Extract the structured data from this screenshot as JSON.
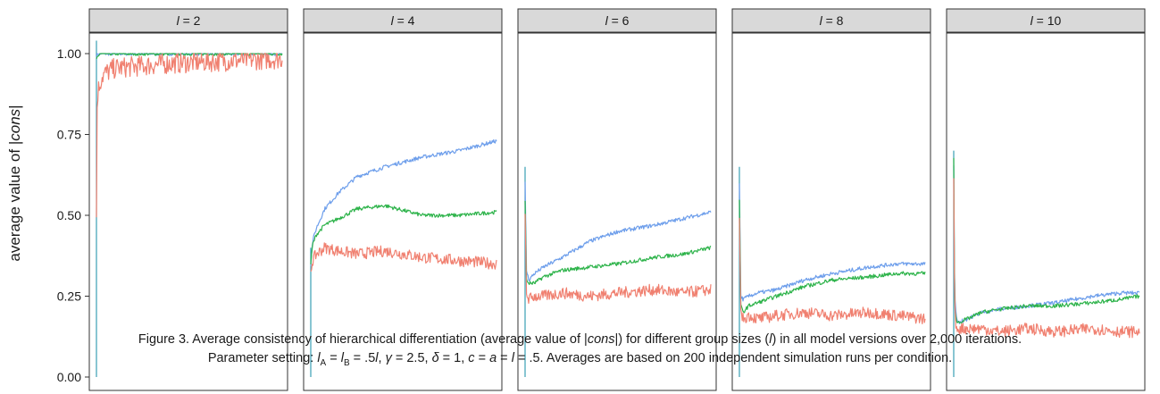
{
  "chart_data": {
    "type": "line",
    "ylabel_prefix": "average value of |",
    "ylabel_var": "cons",
    "ylabel_suffix": "|",
    "ylim": [
      0,
      1
    ],
    "yticks": [
      "0.00",
      "0.25",
      "0.50",
      "0.75",
      "1.00"
    ],
    "ytick_values": [
      0,
      0.25,
      0.5,
      0.75,
      1
    ],
    "x_range": [
      0,
      2000
    ],
    "grid": false,
    "legend": "none",
    "colors": {
      "blue": "#6d9eeb",
      "green": "#2db34a",
      "red": "#f08070",
      "teal": "#3a9fb5"
    },
    "panels": [
      {
        "strip_var": "l",
        "strip_eq": " = 2",
        "series": [
          {
            "color": "#6d9eeb",
            "x": [
              0,
              10,
              40,
              100,
              300,
              2000
            ],
            "y": [
              0.99,
              1.0,
              1.0,
              1.0,
              1.0,
              1.0
            ]
          },
          {
            "color": "#2db34a",
            "x": [
              0,
              10,
              40,
              100,
              300,
              2000
            ],
            "y": [
              0.98,
              0.99,
              1.0,
              1.0,
              1.0,
              1.0
            ]
          },
          {
            "color": "#f08070",
            "x": [
              0,
              5,
              15,
              30,
              60,
              100,
              200,
              400,
              800,
              1200,
              1600,
              2000
            ],
            "y": [
              0.5,
              0.82,
              0.88,
              0.9,
              0.93,
              0.94,
              0.955,
              0.96,
              0.97,
              0.975,
              0.98,
              0.985
            ]
          }
        ]
      },
      {
        "strip_var": "l",
        "strip_eq": " = 4",
        "series": [
          {
            "color": "#6d9eeb",
            "x": [
              0,
              20,
              60,
              150,
              300,
              500,
              800,
              1200,
              1600,
              2000
            ],
            "y": [
              0.35,
              0.42,
              0.46,
              0.52,
              0.57,
              0.62,
              0.65,
              0.68,
              0.7,
              0.73
            ]
          },
          {
            "color": "#2db34a",
            "x": [
              0,
              20,
              60,
              150,
              300,
              500,
              800,
              1200,
              1600,
              2000
            ],
            "y": [
              0.35,
              0.41,
              0.44,
              0.47,
              0.49,
              0.52,
              0.53,
              0.5,
              0.5,
              0.51
            ]
          },
          {
            "color": "#f08070",
            "x": [
              0,
              20,
              60,
              150,
              300,
              500,
              800,
              1200,
              1600,
              2000
            ],
            "y": [
              0.33,
              0.36,
              0.38,
              0.4,
              0.39,
              0.38,
              0.39,
              0.37,
              0.36,
              0.35
            ]
          }
        ]
      },
      {
        "strip_var": "l",
        "strip_eq": " = 6",
        "series": [
          {
            "color": "#6d9eeb",
            "x": [
              0,
              15,
              40,
              100,
              200,
              400,
              700,
              1000,
              1400,
              1700,
              2000
            ],
            "y": [
              0.6,
              0.33,
              0.3,
              0.32,
              0.34,
              0.37,
              0.42,
              0.45,
              0.47,
              0.49,
              0.51
            ]
          },
          {
            "color": "#2db34a",
            "x": [
              0,
              15,
              40,
              100,
              200,
              400,
              700,
              1000,
              1400,
              1700,
              2000
            ],
            "y": [
              0.55,
              0.3,
              0.29,
              0.29,
              0.31,
              0.33,
              0.34,
              0.35,
              0.37,
              0.38,
              0.4
            ]
          },
          {
            "color": "#f08070",
            "x": [
              0,
              15,
              40,
              100,
              200,
              400,
              700,
              1000,
              1400,
              1700,
              2000
            ],
            "y": [
              0.5,
              0.26,
              0.24,
              0.25,
              0.25,
              0.26,
              0.25,
              0.26,
              0.27,
              0.26,
              0.27
            ]
          }
        ]
      },
      {
        "strip_var": "l",
        "strip_eq": " = 8",
        "series": [
          {
            "color": "#6d9eeb",
            "x": [
              0,
              15,
              40,
              100,
              200,
              400,
              700,
              1000,
              1400,
              1700,
              2000
            ],
            "y": [
              0.6,
              0.25,
              0.24,
              0.25,
              0.26,
              0.27,
              0.3,
              0.32,
              0.34,
              0.35,
              0.35
            ]
          },
          {
            "color": "#2db34a",
            "x": [
              0,
              15,
              40,
              100,
              200,
              400,
              700,
              1000,
              1400,
              1700,
              2000
            ],
            "y": [
              0.55,
              0.22,
              0.2,
              0.22,
              0.23,
              0.25,
              0.28,
              0.3,
              0.31,
              0.32,
              0.32
            ]
          },
          {
            "color": "#f08070",
            "x": [
              0,
              15,
              40,
              100,
              200,
              400,
              700,
              1000,
              1400,
              1700,
              2000
            ],
            "y": [
              0.5,
              0.2,
              0.18,
              0.19,
              0.18,
              0.19,
              0.2,
              0.19,
              0.2,
              0.19,
              0.18
            ]
          }
        ]
      },
      {
        "strip_var": "l",
        "strip_eq": " = 10",
        "series": [
          {
            "color": "#6d9eeb",
            "x": [
              0,
              10,
              30,
              60,
              150,
              300,
              500,
              800,
              1100,
              1500,
              1800,
              2000
            ],
            "y": [
              0.65,
              0.25,
              0.18,
              0.17,
              0.18,
              0.2,
              0.21,
              0.22,
              0.23,
              0.25,
              0.26,
              0.26
            ]
          },
          {
            "color": "#2db34a",
            "x": [
              0,
              10,
              30,
              60,
              150,
              300,
              500,
              800,
              1100,
              1500,
              1800,
              2000
            ],
            "y": [
              0.68,
              0.22,
              0.17,
              0.17,
              0.18,
              0.2,
              0.21,
              0.22,
              0.22,
              0.23,
              0.24,
              0.25
            ]
          },
          {
            "color": "#f08070",
            "x": [
              0,
              10,
              30,
              60,
              150,
              300,
              500,
              800,
              1100,
              1500,
              1800,
              2000
            ],
            "y": [
              0.6,
              0.2,
              0.15,
              0.15,
              0.15,
              0.15,
              0.14,
              0.15,
              0.14,
              0.15,
              0.14,
              0.14
            ]
          }
        ]
      }
    ]
  },
  "caption": {
    "line1_a": "Figure 3. Average consistency of hierarchical differentiation (average value of |",
    "line1_b": "cons",
    "line1_c": "|) for different group sizes (",
    "line1_d": "l",
    "line1_e": ") in all model versions over 2,000 iterations.",
    "line2_a": "Parameter setting: ",
    "line2_lA": "l",
    "line2_subA": "A",
    "line2_eq1": " = ",
    "line2_lB": "l",
    "line2_subB": "B",
    "line2_eq2": " = .5",
    "line2_l": "l",
    "line2_b": ", ",
    "line2_gamma": "γ",
    "line2_c": " = 2.5, ",
    "line2_delta": "δ",
    "line2_d": " = 1, ",
    "line2_cvar": "c",
    "line2_e": " = ",
    "line2_avar": "a",
    "line2_f": " = ",
    "line2_ivar": "l",
    "line2_g": " = .5. Averages are based on 200 independent simulation runs per condition."
  }
}
